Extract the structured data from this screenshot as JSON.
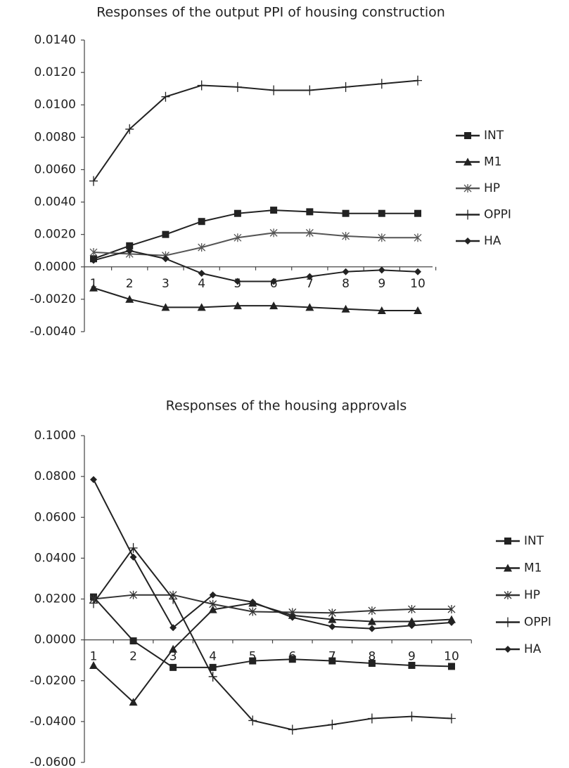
{
  "chart_data": [
    {
      "type": "line",
      "title": "Responses of the output PPI of housing construction",
      "categories": [
        "1",
        "2",
        "3",
        "4",
        "5",
        "6",
        "7",
        "8",
        "9",
        "10"
      ],
      "ylim": [
        -0.004,
        0.014
      ],
      "yticks": [
        {
          "value": -0.004,
          "label": "-0.0040"
        },
        {
          "value": -0.002,
          "label": "-0.0020"
        },
        {
          "value": 0,
          "label": "0.0000"
        },
        {
          "value": 0.002,
          "label": "0.0020"
        },
        {
          "value": 0.004,
          "label": "0.0040"
        },
        {
          "value": 0.006,
          "label": "0.0060"
        },
        {
          "value": 0.008,
          "label": "0.0080"
        },
        {
          "value": 0.01,
          "label": "0.0100"
        },
        {
          "value": 0.012,
          "label": "0.0120"
        },
        {
          "value": 0.014,
          "label": "0.0140"
        }
      ],
      "grid": false,
      "legend": "right",
      "series": [
        {
          "name": "INT",
          "color": "#222222",
          "marker": "square",
          "values": [
            0.0005,
            0.0013,
            0.002,
            0.0028,
            0.0033,
            0.0035,
            0.0034,
            0.0033,
            0.0033,
            0.0033
          ]
        },
        {
          "name": "M1",
          "color": "#222222",
          "marker": "triangle",
          "values": [
            -0.0013,
            -0.002,
            -0.0025,
            -0.0025,
            -0.0024,
            -0.0024,
            -0.0025,
            -0.0026,
            -0.0027,
            -0.0027
          ]
        },
        {
          "name": "HP",
          "color": "#555555",
          "marker": "star",
          "values": [
            0.0009,
            0.0008,
            0.0007,
            0.0012,
            0.0018,
            0.0021,
            0.0021,
            0.0019,
            0.0018,
            0.0018
          ]
        },
        {
          "name": "OPPI",
          "color": "#222222",
          "marker": "plus",
          "values": [
            0.0053,
            0.0085,
            0.0105,
            0.0112,
            0.0111,
            0.0109,
            0.0109,
            0.0111,
            0.0113,
            0.0115
          ]
        },
        {
          "name": "HA",
          "color": "#222222",
          "marker": "diamond",
          "values": [
            0.0004,
            0.001,
            0.0005,
            -0.0004,
            -0.0009,
            -0.0009,
            -0.0006,
            -0.0003,
            -0.0002,
            -0.0003
          ]
        }
      ]
    },
    {
      "type": "line",
      "title": "Responses of the housing approvals",
      "categories": [
        "1",
        "2",
        "3",
        "4",
        "5",
        "6",
        "7",
        "8",
        "9",
        "10"
      ],
      "ylim": [
        -0.06,
        0.1
      ],
      "yticks": [
        {
          "value": -0.06,
          "label": "-0.0600"
        },
        {
          "value": -0.04,
          "label": "-0.0400"
        },
        {
          "value": -0.02,
          "label": "-0.0200"
        },
        {
          "value": 0,
          "label": "0.0000"
        },
        {
          "value": 0.02,
          "label": "0.0200"
        },
        {
          "value": 0.04,
          "label": "0.0400"
        },
        {
          "value": 0.06,
          "label": "0.0600"
        },
        {
          "value": 0.08,
          "label": "0.0800"
        },
        {
          "value": 0.1,
          "label": "0.1000"
        }
      ],
      "grid": false,
      "legend": "right",
      "series": [
        {
          "name": "INT",
          "color": "#222222",
          "marker": "square",
          "values": [
            0.021,
            -0.0005,
            -0.0135,
            -0.0135,
            -0.0103,
            -0.0095,
            -0.0103,
            -0.0115,
            -0.0125,
            -0.013
          ]
        },
        {
          "name": "M1",
          "color": "#222222",
          "marker": "triangle",
          "values": [
            -0.0125,
            -0.0305,
            -0.0045,
            0.0148,
            0.018,
            0.012,
            0.01,
            0.009,
            0.009,
            0.01
          ]
        },
        {
          "name": "HP",
          "color": "#333333",
          "marker": "star",
          "values": [
            0.02,
            0.022,
            0.022,
            0.0175,
            0.0138,
            0.0135,
            0.0132,
            0.0143,
            0.015,
            0.015
          ]
        },
        {
          "name": "OPPI",
          "color": "#222222",
          "marker": "plus",
          "values": [
            0.018,
            0.045,
            0.02,
            -0.018,
            -0.0395,
            -0.044,
            -0.0415,
            -0.0385,
            -0.0375,
            -0.0385
          ]
        },
        {
          "name": "HA",
          "color": "#222222",
          "marker": "diamond",
          "values": [
            0.0785,
            0.0405,
            0.006,
            0.022,
            0.0185,
            0.011,
            0.0065,
            0.0055,
            0.007,
            0.0085
          ]
        }
      ]
    }
  ]
}
